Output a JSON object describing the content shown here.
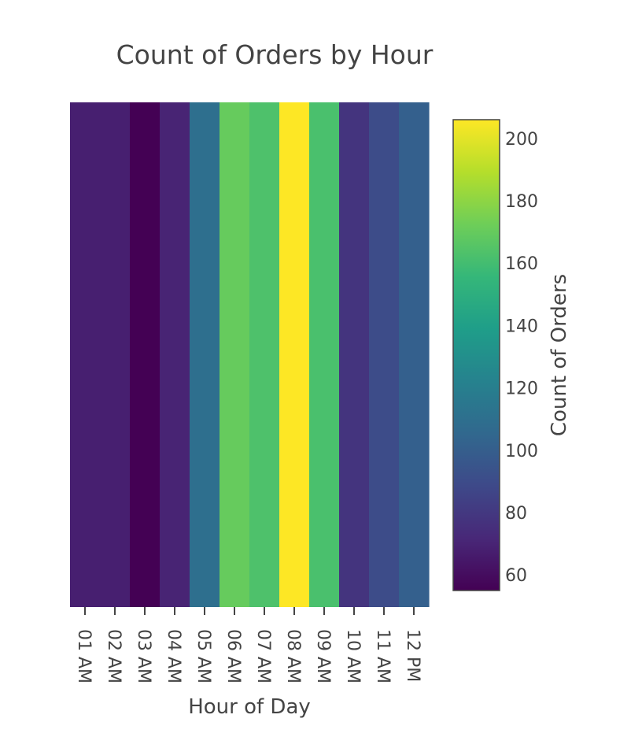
{
  "chart_data": {
    "type": "heatmap",
    "title": "Count of Orders by Hour",
    "xlabel": "Hour of Day",
    "categories": [
      "01 AM",
      "02 AM",
      "03 AM",
      "04 AM",
      "05 AM",
      "06 AM",
      "07 AM",
      "08 AM",
      "09 AM",
      "10 AM",
      "11 AM",
      "12 PM"
    ],
    "values": [
      68,
      68,
      55,
      70,
      110,
      170,
      163,
      206,
      162,
      78,
      90,
      101
    ],
    "colorbar": {
      "title": "Count of Orders",
      "range": [
        55,
        206
      ],
      "ticks": [
        60,
        80,
        100,
        120,
        140,
        160,
        180,
        200
      ],
      "colorscale": "Viridis"
    },
    "grid": false
  }
}
